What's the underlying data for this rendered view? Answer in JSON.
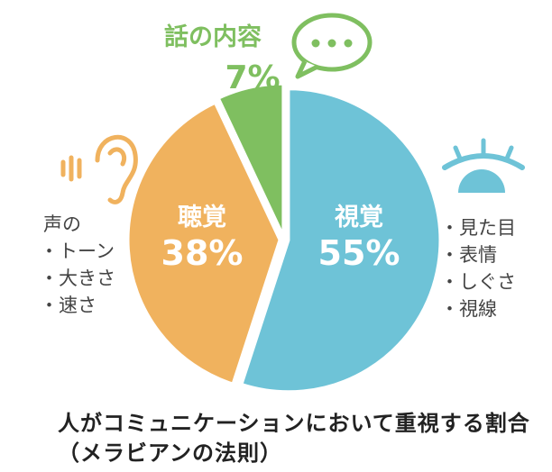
{
  "chart_data": {
    "type": "pie",
    "categories": [
      "視覚",
      "聴覚",
      "話の内容"
    ],
    "values": [
      55,
      38,
      7
    ],
    "value_labels": [
      "55%",
      "38%",
      "7%"
    ],
    "colors": [
      "#6ec3d7",
      "#f0b25e",
      "#7fbf60"
    ],
    "label_color_outside": "#7fbf60"
  },
  "annotations": {
    "visual": {
      "icon": "eye-icon",
      "items": [
        "・見た目",
        "・表情",
        "・しぐさ",
        "・視線"
      ]
    },
    "auditory": {
      "icon": "ear-icon",
      "title": "声の",
      "items": [
        "・トーン",
        "・大きさ",
        "・速さ"
      ]
    },
    "content": {
      "icon": "speech-bubble-icon"
    }
  },
  "caption": {
    "line1": "人がコミュニケーションにおいて重視する割合",
    "line2": "（メラビアンの法則）"
  }
}
